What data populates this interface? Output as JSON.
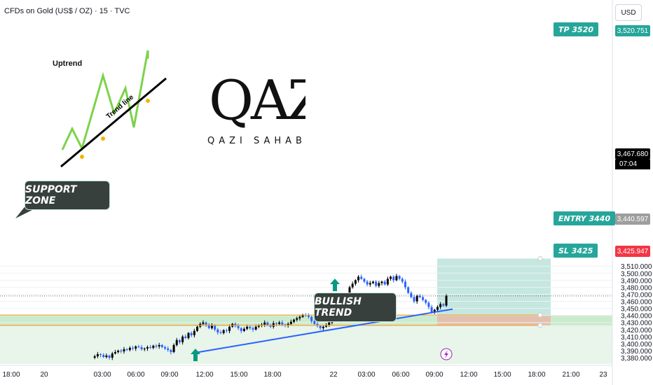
{
  "header": {
    "symbol": "CFDs on Gold (US$ / OZ) · 15 · TVC",
    "currency": "USD"
  },
  "branding": {
    "logo_text": "QAZI",
    "logo_subtitle": "QAZI SAHAB"
  },
  "inset": {
    "title": "Uptrend",
    "trend_label": "Trend line"
  },
  "annotations": {
    "support_zone": "SUPPORT ZONE",
    "bullish_trend": "BULLISH TREND",
    "tp_label": "TP 3520",
    "entry_label": "ENTRY 3440",
    "sl_label": "SL 3425"
  },
  "price_tags": {
    "tp": "3,520.751",
    "current": "3,467.680",
    "countdown": "07:04",
    "entry": "3,440.597",
    "sl": "3,425.947"
  },
  "colors": {
    "up": "#26a69a",
    "down": "#2962ff",
    "candle_up": "#000000",
    "candle_down": "#2962ff",
    "trendline": "#2962ff",
    "support_zone": "#c8ebc9",
    "target_zone": "#b2dfd5",
    "stop_zone": "#e8b8a8",
    "tag_teal": "#26a69a",
    "tag_red": "#f23645",
    "tag_gray": "#9e9e9e",
    "arrow": "#089981"
  },
  "chart_data": {
    "type": "candlestick",
    "y_axis": {
      "ticks": [
        3380,
        3390,
        3400,
        3410,
        3420,
        3430,
        3440,
        3450,
        3460,
        3470,
        3480,
        3490,
        3500,
        3510
      ],
      "tick_labels": [
        "3,380.000",
        "3,390.000",
        "3,400.000",
        "3,410.000",
        "3,420.000",
        "3,430.000",
        "3,440.000",
        "3,450.000",
        "3,460.000",
        "3,470.000",
        "3,480.000",
        "3,490.000",
        "3,500.000",
        "3,510.000"
      ],
      "range": [
        3376,
        3528
      ]
    },
    "x_axis": {
      "tick_labels": [
        "18:00",
        "20",
        "03:00",
        "06:00",
        "09:00",
        "12:00",
        "15:00",
        "18:00",
        "22",
        "03:00",
        "06:00",
        "09:00",
        "12:00",
        "15:00",
        "18:00",
        "21:00",
        "23"
      ]
    },
    "levels": {
      "tp": 3520.751,
      "current": 3467.68,
      "entry": 3440.597,
      "sl": 3425.947,
      "support_zone": [
        3425.947,
        3440.597
      ]
    },
    "trendline": [
      {
        "x": "Aug 21 11:00",
        "y": 3387
      },
      {
        "x": "Aug 22 10:30",
        "y": 3447
      }
    ],
    "close_path": [
      3380,
      3382,
      3385,
      3384,
      3381,
      3383,
      3380,
      3386,
      3388,
      3390,
      3389,
      3392,
      3391,
      3394,
      3393,
      3396,
      3395,
      3392,
      3393,
      3395,
      3394,
      3397,
      3396,
      3398,
      3395,
      3393,
      3391,
      3388,
      3398,
      3405,
      3402,
      3410,
      3408,
      3415,
      3412,
      3418,
      3424,
      3428,
      3430,
      3427,
      3422,
      3426,
      3420,
      3416,
      3415,
      3419,
      3418,
      3424,
      3428,
      3425,
      3422,
      3418,
      3421,
      3424,
      3422,
      3420,
      3424,
      3426,
      3427,
      3430,
      3426,
      3424,
      3429,
      3428,
      3430,
      3427,
      3426,
      3428,
      3431,
      3434,
      3436,
      3438,
      3441,
      3440,
      3438,
      3432,
      3428,
      3425,
      3422,
      3424,
      3426,
      3430,
      3438,
      3444,
      3450,
      3456,
      3462,
      3470,
      3480,
      3485,
      3490,
      3495,
      3492,
      3488,
      3484,
      3486,
      3488,
      3482,
      3486,
      3488,
      3484,
      3492,
      3495,
      3490,
      3496,
      3492,
      3488,
      3480,
      3472,
      3466,
      3460,
      3468,
      3466,
      3462,
      3458,
      3452,
      3444,
      3448,
      3452,
      3456,
      3454,
      3468
    ]
  }
}
